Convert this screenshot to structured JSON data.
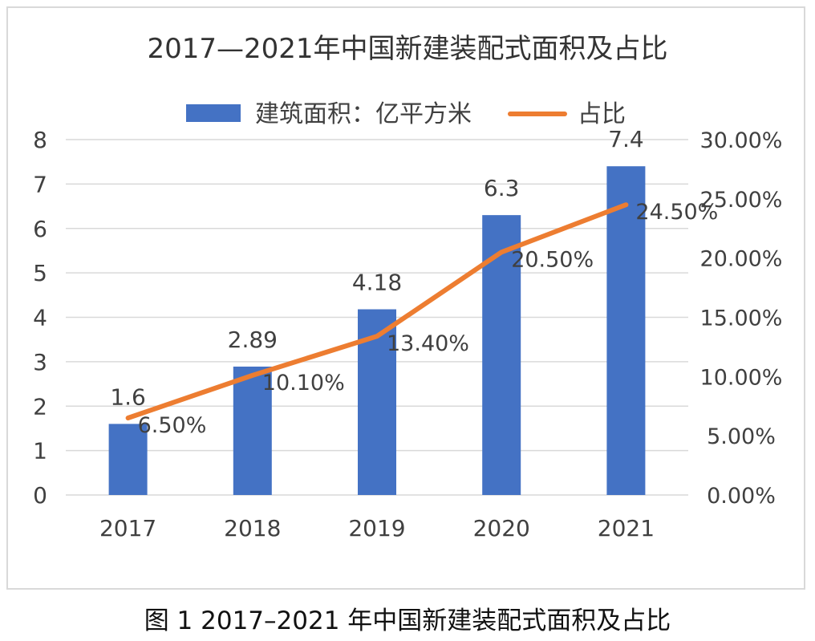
{
  "caption": "图 1  2017–2021 年中国新建装配式面积及占比",
  "chart_data": {
    "type": "bar",
    "title": "2017—2021年中国新建装配式面积及占比",
    "categories": [
      "2017",
      "2018",
      "2019",
      "2020",
      "2021"
    ],
    "series": [
      {
        "name": "建筑面积：亿平方米",
        "type": "bar",
        "axis": "left",
        "color": "#4472c4",
        "values": [
          1.6,
          2.89,
          4.18,
          6.3,
          7.4
        ],
        "labels": [
          "1.6",
          "2.89",
          "4.18",
          "6.3",
          "7.4"
        ]
      },
      {
        "name": "占比",
        "type": "line",
        "axis": "right",
        "color": "#ed7d31",
        "values": [
          6.5,
          10.1,
          13.4,
          20.5,
          24.5
        ],
        "labels": [
          "6.50%",
          "10.10%",
          "13.40%",
          "20.50%",
          "24.50%"
        ]
      }
    ],
    "y_left": {
      "ylim": [
        0,
        8
      ],
      "ticks": [
        "0",
        "1",
        "2",
        "3",
        "4",
        "5",
        "6",
        "7",
        "8"
      ]
    },
    "y_right": {
      "ylim": [
        0,
        30
      ],
      "ticks": [
        "0.00%",
        "5.00%",
        "10.00%",
        "15.00%",
        "20.00%",
        "25.00%",
        "30.00%"
      ]
    },
    "grid": true,
    "legend": "top-center",
    "colors": {
      "grid": "#d9d9d9",
      "text": "#404040",
      "title": "#333333"
    }
  }
}
